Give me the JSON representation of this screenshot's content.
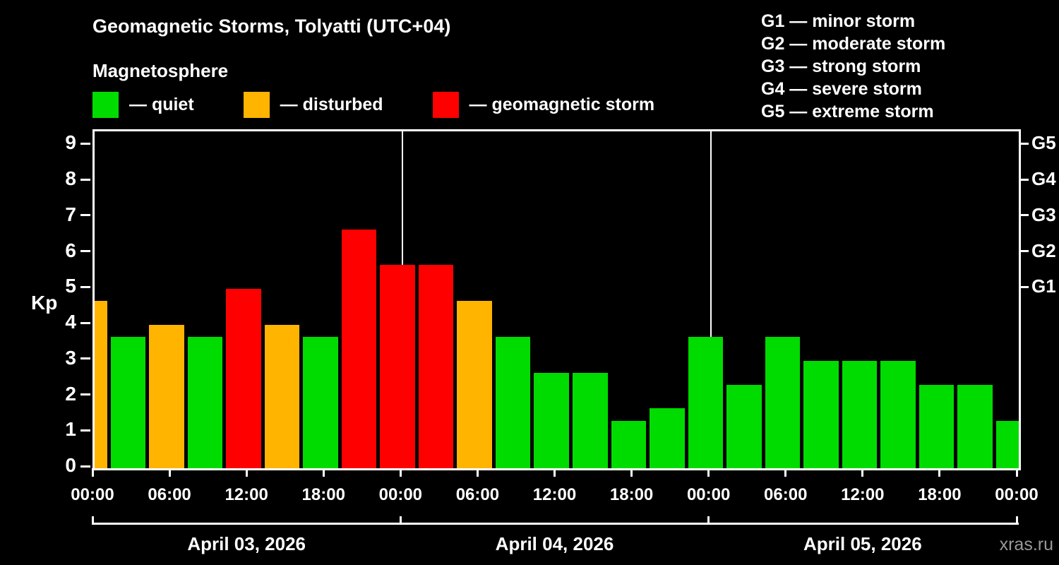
{
  "header": {
    "title": "Geomagnetic Storms, Tolyatti (UTC+04)",
    "subtitle": "Magnetosphere",
    "legend": [
      {
        "status": "quiet",
        "label": "— quiet"
      },
      {
        "status": "disturbed",
        "label": "— disturbed"
      },
      {
        "status": "storm",
        "label": "— geomagnetic storm"
      }
    ],
    "g_legend": [
      "G1 — minor storm",
      "G2 — moderate storm",
      "G3 — strong storm",
      "G4 — severe storm",
      "G5 — extreme storm"
    ]
  },
  "colors": {
    "quiet": "#00dc00",
    "disturbed": "#ffb400",
    "storm": "#ff0000",
    "axis": "#ffffff",
    "background": "#000000",
    "watermark": "#999999"
  },
  "footer": {
    "watermark": "xras.ru"
  },
  "chart_data": {
    "type": "bar",
    "title": "Geomagnetic Storms, Tolyatti (UTC+04)",
    "ylabel": "Kp",
    "xlabel": "",
    "ylim": [
      0,
      9.4
    ],
    "yticks": [
      0,
      1,
      2,
      3,
      4,
      5,
      6,
      7,
      8,
      9
    ],
    "g_ticks": [
      {
        "label": "G1",
        "kp": 5
      },
      {
        "label": "G2",
        "kp": 6
      },
      {
        "label": "G3",
        "kp": 7
      },
      {
        "label": "G4",
        "kp": 8
      },
      {
        "label": "G5",
        "kp": 9
      }
    ],
    "x_ticks": [
      {
        "hour": 0,
        "label": "00:00"
      },
      {
        "hour": 6,
        "label": "06:00"
      },
      {
        "hour": 12,
        "label": "12:00"
      },
      {
        "hour": 18,
        "label": "18:00"
      },
      {
        "hour": 24,
        "label": "00:00"
      },
      {
        "hour": 30,
        "label": "06:00"
      },
      {
        "hour": 36,
        "label": "12:00"
      },
      {
        "hour": 42,
        "label": "18:00"
      },
      {
        "hour": 48,
        "label": "00:00"
      },
      {
        "hour": 54,
        "label": "06:00"
      },
      {
        "hour": 60,
        "label": "12:00"
      },
      {
        "hour": 66,
        "label": "18:00"
      },
      {
        "hour": 72,
        "label": "00:00"
      }
    ],
    "day_boundaries_hours": [
      24,
      48
    ],
    "days": [
      {
        "label": "April 03, 2026"
      },
      {
        "label": "April 04, 2026"
      },
      {
        "label": "April 05, 2026"
      }
    ],
    "leading_partial": {
      "kp": 4.67,
      "status": "disturbed"
    },
    "bars": [
      {
        "day": "April 03, 2026",
        "start": "00:00",
        "kp": 3.67,
        "status": "quiet"
      },
      {
        "day": "April 03, 2026",
        "start": "03:00",
        "kp": 4.0,
        "status": "disturbed"
      },
      {
        "day": "April 03, 2026",
        "start": "06:00",
        "kp": 3.67,
        "status": "quiet"
      },
      {
        "day": "April 03, 2026",
        "start": "09:00",
        "kp": 5.0,
        "status": "storm"
      },
      {
        "day": "April 03, 2026",
        "start": "12:00",
        "kp": 4.0,
        "status": "disturbed"
      },
      {
        "day": "April 03, 2026",
        "start": "15:00",
        "kp": 3.67,
        "status": "quiet"
      },
      {
        "day": "April 03, 2026",
        "start": "18:00",
        "kp": 6.67,
        "status": "storm"
      },
      {
        "day": "April 03, 2026",
        "start": "21:00",
        "kp": 5.67,
        "status": "storm"
      },
      {
        "day": "April 04, 2026",
        "start": "00:00",
        "kp": 5.67,
        "status": "storm"
      },
      {
        "day": "April 04, 2026",
        "start": "03:00",
        "kp": 4.67,
        "status": "disturbed"
      },
      {
        "day": "April 04, 2026",
        "start": "06:00",
        "kp": 3.67,
        "status": "quiet"
      },
      {
        "day": "April 04, 2026",
        "start": "09:00",
        "kp": 2.67,
        "status": "quiet"
      },
      {
        "day": "April 04, 2026",
        "start": "12:00",
        "kp": 2.67,
        "status": "quiet"
      },
      {
        "day": "April 04, 2026",
        "start": "15:00",
        "kp": 1.33,
        "status": "quiet"
      },
      {
        "day": "April 04, 2026",
        "start": "18:00",
        "kp": 1.67,
        "status": "quiet"
      },
      {
        "day": "April 04, 2026",
        "start": "21:00",
        "kp": 3.67,
        "status": "quiet"
      },
      {
        "day": "April 05, 2026",
        "start": "00:00",
        "kp": 2.33,
        "status": "quiet"
      },
      {
        "day": "April 05, 2026",
        "start": "03:00",
        "kp": 3.67,
        "status": "quiet"
      },
      {
        "day": "April 05, 2026",
        "start": "06:00",
        "kp": 3.0,
        "status": "quiet"
      },
      {
        "day": "April 05, 2026",
        "start": "09:00",
        "kp": 3.0,
        "status": "quiet"
      },
      {
        "day": "April 05, 2026",
        "start": "12:00",
        "kp": 3.0,
        "status": "quiet"
      },
      {
        "day": "April 05, 2026",
        "start": "15:00",
        "kp": 2.33,
        "status": "quiet"
      },
      {
        "day": "April 05, 2026",
        "start": "18:00",
        "kp": 2.33,
        "status": "quiet"
      },
      {
        "day": "April 05, 2026",
        "start": "21:00",
        "kp": 1.33,
        "status": "quiet"
      }
    ]
  }
}
